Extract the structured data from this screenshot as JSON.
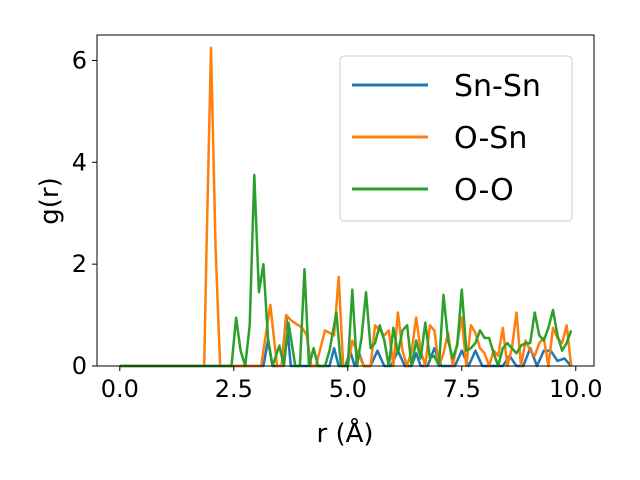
{
  "chart_data": {
    "type": "line",
    "xlabel": "r (Å)",
    "ylabel": "g(r)",
    "xlim": [
      -0.5,
      10.4
    ],
    "ylim": [
      0,
      6.5
    ],
    "xticks": [
      0.0,
      2.5,
      5.0,
      7.5,
      10.0
    ],
    "xtick_labels": [
      "0.0",
      "2.5",
      "5.0",
      "7.5",
      "10.0"
    ],
    "yticks": [
      0,
      2,
      4,
      6
    ],
    "ytick_labels": [
      "0",
      "2",
      "4",
      "6"
    ],
    "grid": false,
    "legend_position": "top-right",
    "series": [
      {
        "name": "Sn-Sn",
        "color": "#1f77b4",
        "x": [
          0.0,
          3.15,
          3.25,
          3.35,
          3.55,
          3.65,
          3.75,
          3.85,
          3.95,
          4.05,
          4.25,
          4.45,
          4.6,
          4.7,
          4.8,
          4.95,
          5.05,
          5.15,
          5.25,
          5.35,
          5.5,
          5.65,
          5.8,
          5.95,
          6.1,
          6.25,
          6.4,
          6.5,
          6.6,
          6.75,
          6.9,
          7.05,
          7.2,
          7.35,
          7.5,
          7.65,
          7.8,
          7.95,
          8.1,
          8.25,
          8.4,
          8.55,
          8.7,
          8.85,
          9.0,
          9.15,
          9.3,
          9.45,
          9.6,
          9.75,
          9.9
        ],
        "y": [
          0.0,
          0.0,
          0.5,
          0.0,
          0.0,
          1.0,
          0.0,
          0.0,
          0.0,
          0.0,
          0.0,
          0.0,
          0.0,
          0.35,
          0.0,
          0.0,
          0.3,
          0.0,
          0.25,
          0.0,
          0.0,
          0.3,
          0.0,
          0.0,
          0.3,
          0.0,
          0.0,
          0.25,
          0.0,
          0.0,
          0.35,
          0.0,
          0.0,
          0.0,
          0.3,
          0.0,
          0.3,
          0.0,
          0.0,
          0.0,
          0.0,
          0.2,
          0.0,
          0.0,
          0.35,
          0.0,
          0.3,
          0.3,
          0.1,
          0.15,
          0.0
        ]
      },
      {
        "name": "O-Sn",
        "color": "#ff7f0e",
        "x": [
          0.0,
          1.85,
          1.9,
          2.0,
          2.1,
          2.2,
          2.3,
          3.1,
          3.2,
          3.3,
          3.45,
          3.55,
          3.65,
          3.75,
          4.0,
          4.1,
          4.2,
          4.3,
          4.5,
          4.6,
          4.7,
          4.8,
          4.9,
          5.0,
          5.1,
          5.2,
          5.35,
          5.5,
          5.6,
          5.7,
          5.8,
          5.9,
          6.0,
          6.1,
          6.2,
          6.3,
          6.4,
          6.5,
          6.6,
          6.7,
          6.8,
          6.9,
          7.0,
          7.1,
          7.2,
          7.3,
          7.4,
          7.5,
          7.6,
          7.7,
          7.8,
          7.9,
          8.0,
          8.1,
          8.2,
          8.3,
          8.4,
          8.5,
          8.6,
          8.7,
          8.8,
          8.9,
          9.0,
          9.1,
          9.2,
          9.3,
          9.4,
          9.5,
          9.6,
          9.7,
          9.8,
          9.9
        ],
        "y": [
          0.0,
          0.0,
          2.2,
          6.25,
          2.3,
          0.0,
          0.0,
          0.0,
          0.6,
          1.2,
          0.0,
          0.0,
          1.0,
          0.9,
          0.75,
          0.6,
          0.0,
          0.0,
          0.7,
          0.65,
          0.6,
          1.75,
          0.0,
          0.0,
          0.5,
          0.3,
          0.0,
          0.0,
          0.8,
          0.7,
          0.6,
          0.7,
          0.0,
          1.05,
          0.3,
          0.0,
          0.3,
          0.95,
          0.3,
          0.0,
          0.8,
          0.7,
          0.0,
          0.25,
          0.65,
          0.0,
          0.45,
          0.95,
          0.0,
          0.8,
          0.65,
          0.35,
          0.25,
          0.0,
          0.3,
          0.2,
          0.75,
          0.0,
          0.35,
          1.05,
          0.0,
          0.5,
          0.3,
          0.2,
          0.45,
          0.55,
          0.0,
          0.75,
          0.55,
          0.45,
          0.8,
          0.0
        ]
      },
      {
        "name": "O-O",
        "color": "#2ca02c",
        "x": [
          0.0,
          2.45,
          2.55,
          2.65,
          2.75,
          2.85,
          2.95,
          3.05,
          3.15,
          3.25,
          3.35,
          3.5,
          3.6,
          3.7,
          3.85,
          3.95,
          4.05,
          4.15,
          4.25,
          4.35,
          4.5,
          4.6,
          4.75,
          4.85,
          5.0,
          5.1,
          5.2,
          5.3,
          5.4,
          5.5,
          5.6,
          5.7,
          5.8,
          5.9,
          6.0,
          6.1,
          6.2,
          6.3,
          6.4,
          6.5,
          6.6,
          6.7,
          6.8,
          6.9,
          7.0,
          7.1,
          7.2,
          7.3,
          7.4,
          7.5,
          7.6,
          7.7,
          7.8,
          7.9,
          8.0,
          8.1,
          8.2,
          8.3,
          8.4,
          8.5,
          8.6,
          8.7,
          8.8,
          8.9,
          9.0,
          9.1,
          9.2,
          9.3,
          9.4,
          9.5,
          9.6,
          9.7,
          9.8,
          9.9
        ],
        "y": [
          0.0,
          0.0,
          0.95,
          0.3,
          0.0,
          0.8,
          3.75,
          1.45,
          2.0,
          0.55,
          0.0,
          0.4,
          0.0,
          0.85,
          0.0,
          0.0,
          1.9,
          0.0,
          0.35,
          0.0,
          0.0,
          0.3,
          1.05,
          0.0,
          0.0,
          1.5,
          0.0,
          0.55,
          1.45,
          0.35,
          0.45,
          0.8,
          0.5,
          0.0,
          0.75,
          0.25,
          0.7,
          0.8,
          0.0,
          0.5,
          0.15,
          0.85,
          0.15,
          0.2,
          0.0,
          1.4,
          0.5,
          0.15,
          0.4,
          1.5,
          0.3,
          0.35,
          0.45,
          0.7,
          0.55,
          0.55,
          0.25,
          0.0,
          0.35,
          0.45,
          0.35,
          0.25,
          0.4,
          0.45,
          0.45,
          1.05,
          0.6,
          0.5,
          0.75,
          1.1,
          0.6,
          0.3,
          0.45,
          0.7
        ]
      }
    ]
  }
}
